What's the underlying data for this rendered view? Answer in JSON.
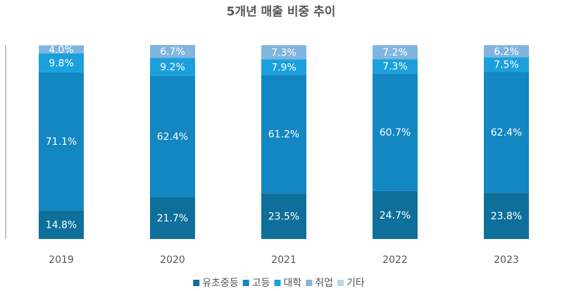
{
  "chart_data": {
    "type": "stacked-bar",
    "title": "5개년 매출 비중 추이",
    "categories": [
      "2019",
      "2020",
      "2021",
      "2022",
      "2023"
    ],
    "ylim": [
      0,
      100
    ],
    "series": [
      {
        "name": "유초중등",
        "color": "#0f6f9b",
        "values": [
          14.8,
          21.7,
          23.5,
          24.7,
          23.8
        ],
        "value_labels": [
          "14.8%",
          "21.7%",
          "23.5%",
          "24.7%",
          "23.8%"
        ]
      },
      {
        "name": "고등",
        "color": "#1287c2",
        "values": [
          71.1,
          62.4,
          61.2,
          60.7,
          62.4
        ],
        "value_labels": [
          "71.1%",
          "62.4%",
          "61.2%",
          "60.7%",
          "62.4%"
        ]
      },
      {
        "name": "대학",
        "color": "#1ba0dc",
        "values": [
          9.8,
          9.2,
          7.9,
          7.3,
          7.5
        ],
        "value_labels": [
          "9.8%",
          "9.2%",
          "7.9%",
          "7.3%",
          "7.5%"
        ]
      },
      {
        "name": "취업",
        "color": "#80b5df",
        "values": [
          4.0,
          6.7,
          7.3,
          7.2,
          6.2
        ],
        "value_labels": [
          "4.0%",
          "6.7%",
          "7.3%",
          "7.2%",
          "6.2%"
        ]
      },
      {
        "name": "기타",
        "color": "#b8d5ee",
        "values": [
          0.3,
          0,
          0.1,
          0.1,
          0.1
        ]
      }
    ]
  }
}
